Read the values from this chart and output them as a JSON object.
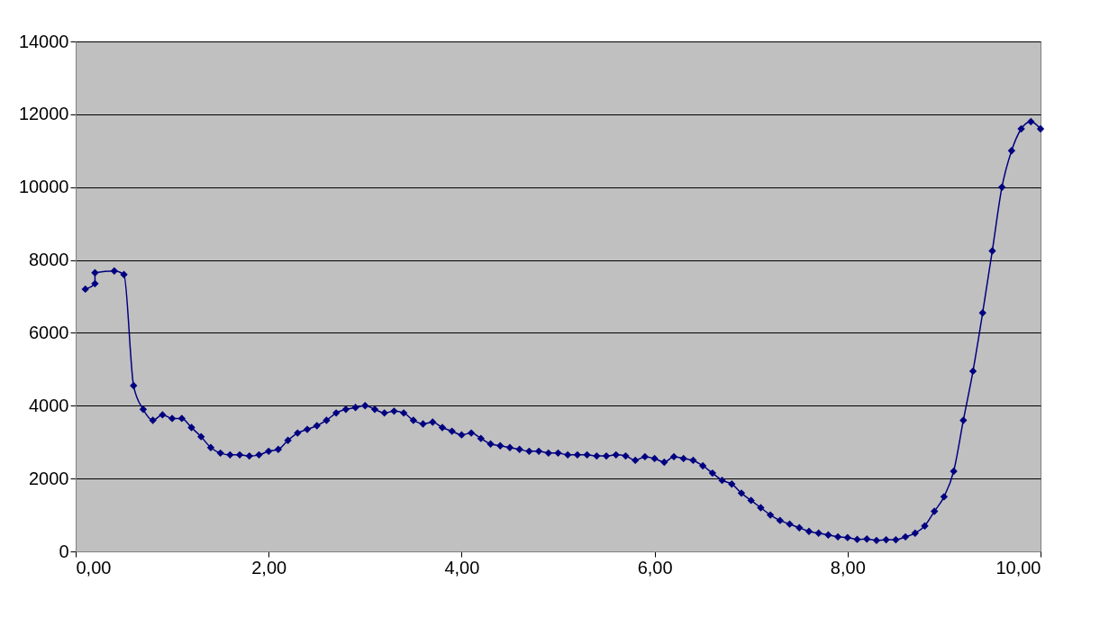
{
  "chart_data": {
    "type": "line",
    "marker": "diamond",
    "line_style": "solid",
    "grid": "y",
    "x": [
      0.1,
      0.2,
      0.2,
      0.4,
      0.5,
      0.6,
      0.7,
      0.8,
      0.9,
      1.0,
      1.1,
      1.2,
      1.3,
      1.4,
      1.5,
      1.6,
      1.7,
      1.8,
      1.9,
      2.0,
      2.1,
      2.2,
      2.3,
      2.4,
      2.5,
      2.6,
      2.7,
      2.8,
      2.9,
      3.0,
      3.1,
      3.2,
      3.3,
      3.4,
      3.5,
      3.6,
      3.7,
      3.8,
      3.9,
      4.0,
      4.1,
      4.2,
      4.3,
      4.4,
      4.5,
      4.6,
      4.7,
      4.8,
      4.9,
      5.0,
      5.1,
      5.2,
      5.3,
      5.4,
      5.5,
      5.6,
      5.7,
      5.8,
      5.9,
      6.0,
      6.1,
      6.2,
      6.3,
      6.4,
      6.5,
      6.6,
      6.7,
      6.8,
      6.9,
      7.0,
      7.1,
      7.2,
      7.3,
      7.4,
      7.5,
      7.6,
      7.7,
      7.8,
      7.9,
      8.0,
      8.1,
      8.2,
      8.3,
      8.4,
      8.5,
      8.6,
      8.7,
      8.8,
      8.9,
      9.0,
      9.1,
      9.2,
      9.3,
      9.4,
      9.5,
      9.6,
      9.7,
      9.8,
      9.9,
      10.0
    ],
    "series": [
      {
        "color": "#000080",
        "values": [
          7200,
          7350,
          7650,
          7700,
          7600,
          4550,
          3900,
          3600,
          3750,
          3650,
          3650,
          3400,
          3150,
          2850,
          2700,
          2650,
          2650,
          2620,
          2650,
          2750,
          2800,
          3050,
          3250,
          3350,
          3450,
          3600,
          3800,
          3900,
          3950,
          4000,
          3900,
          3800,
          3850,
          3800,
          3600,
          3500,
          3550,
          3400,
          3300,
          3200,
          3250,
          3100,
          2950,
          2900,
          2850,
          2800,
          2750,
          2750,
          2700,
          2700,
          2650,
          2650,
          2650,
          2620,
          2620,
          2650,
          2620,
          2500,
          2600,
          2550,
          2450,
          2600,
          2550,
          2500,
          2350,
          2150,
          1950,
          1850,
          1600,
          1400,
          1200,
          1000,
          850,
          750,
          650,
          550,
          500,
          450,
          400,
          380,
          330,
          340,
          300,
          320,
          320,
          400,
          500,
          700,
          1100,
          1500,
          2200,
          3600,
          4950,
          6550,
          8250,
          10000,
          11000,
          11600,
          11800,
          11600
        ]
      }
    ],
    "xlim": [
      0,
      10
    ],
    "xticks": [
      {
        "value": 0,
        "label": "0,00"
      },
      {
        "value": 2,
        "label": "2,00"
      },
      {
        "value": 4,
        "label": "4,00"
      },
      {
        "value": 6,
        "label": "6,00"
      },
      {
        "value": 8,
        "label": "8,00"
      },
      {
        "value": 10,
        "label": "10,00"
      }
    ],
    "ylim": [
      0,
      14000
    ],
    "yticks": [
      0,
      2000,
      4000,
      6000,
      8000,
      10000,
      12000,
      14000
    ]
  }
}
